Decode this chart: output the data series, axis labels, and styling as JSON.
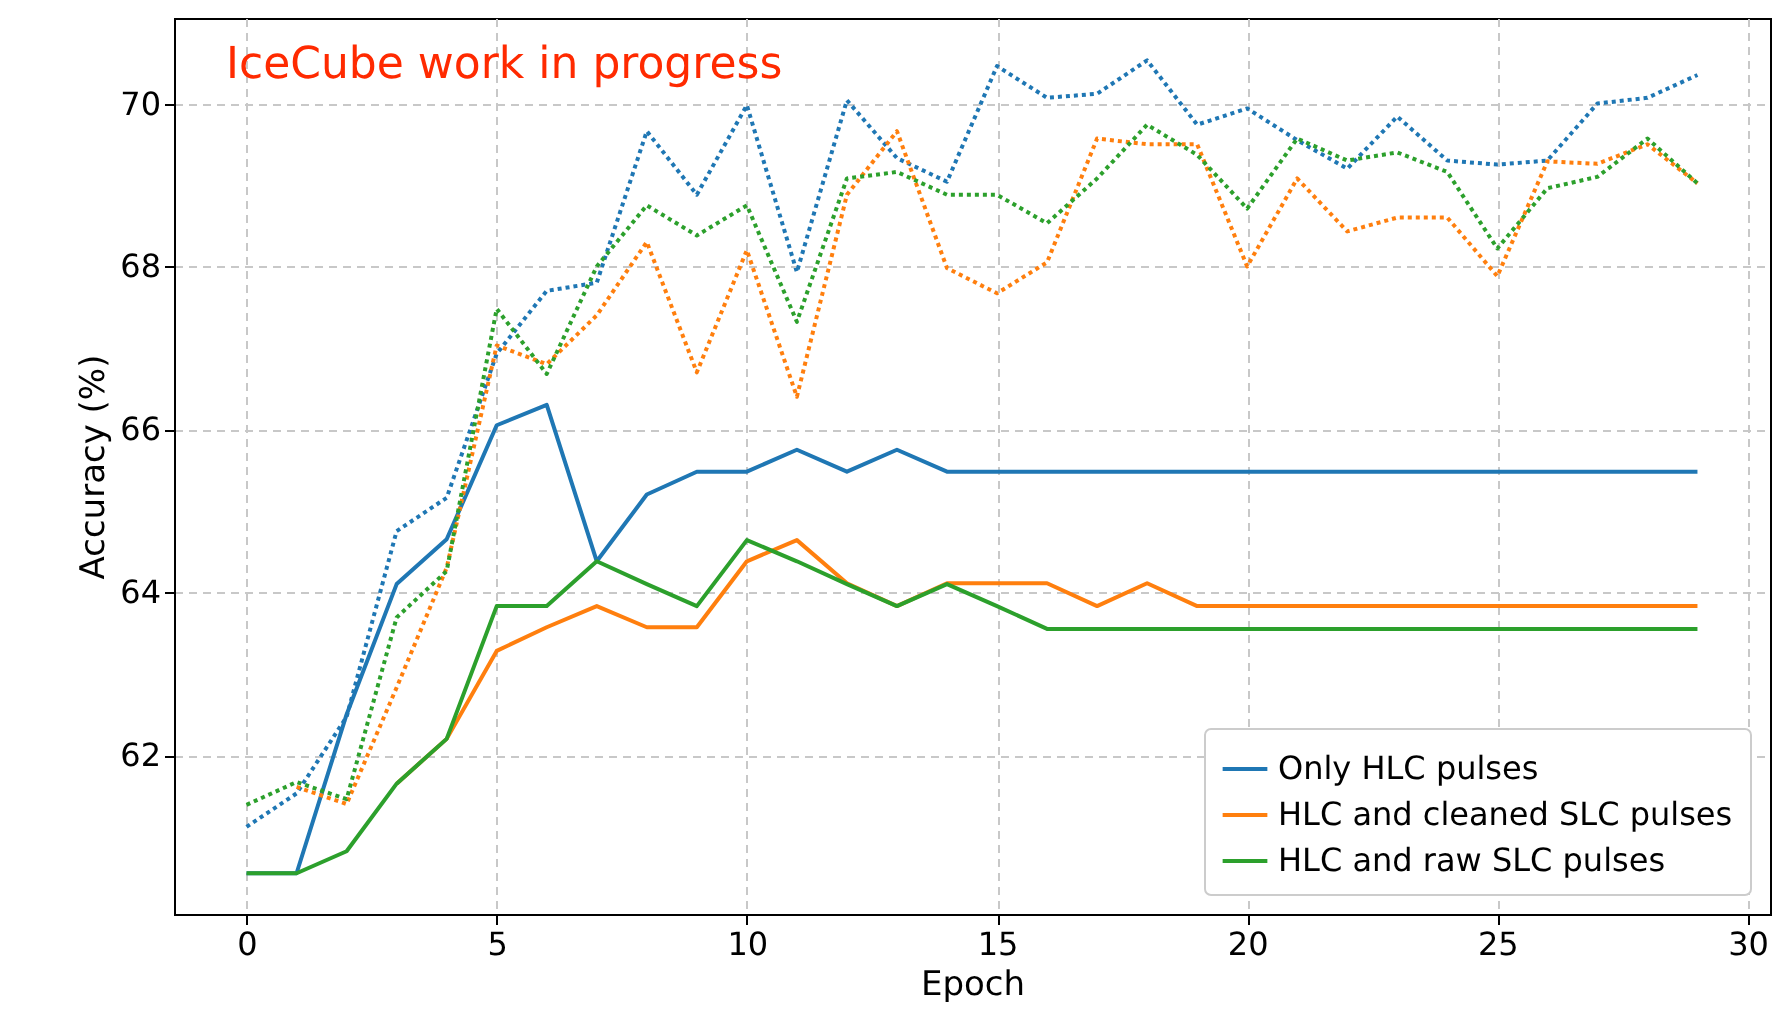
{
  "chart_data": {
    "type": "line",
    "xlabel": "Epoch",
    "ylabel": "Accuracy (%)",
    "xlim": [
      -1.45,
      30.45
    ],
    "ylim": [
      60.05,
      71.05
    ],
    "xticks": [
      0,
      5,
      10,
      15,
      20,
      25,
      30
    ],
    "yticks": [
      62,
      64,
      66,
      68,
      70
    ],
    "grid": true,
    "legend": "bottom right",
    "marker": "none",
    "x": [
      0,
      1,
      2,
      3,
      4,
      5,
      6,
      7,
      8,
      9,
      10,
      11,
      12,
      13,
      14,
      15,
      16,
      17,
      18,
      19,
      20,
      21,
      22,
      23,
      24,
      25,
      26,
      27,
      28,
      29
    ],
    "annotations": [
      "IceCube work in progress"
    ],
    "series": [
      {
        "name": "Only HLC pulses",
        "color": "#1f77b4",
        "line_style": "solid",
        "values": [
          60.55,
          60.55,
          62.5,
          64.1,
          64.65,
          66.05,
          66.3,
          64.38,
          65.2,
          65.48,
          65.48,
          65.75,
          65.48,
          65.75,
          65.48,
          65.48,
          65.48,
          65.48,
          65.48,
          65.48,
          65.48,
          65.48,
          65.48,
          65.48,
          65.48,
          65.48,
          65.48,
          65.48,
          65.48,
          65.48
        ]
      },
      {
        "name": "HLC and cleaned SLC pulses",
        "color": "#ff7f0e",
        "line_style": "solid",
        "values": [
          null,
          null,
          null,
          61.65,
          62.2,
          63.28,
          63.57,
          63.83,
          63.57,
          63.57,
          64.38,
          64.64,
          64.11,
          63.83,
          64.11,
          64.11,
          64.11,
          63.83,
          64.11,
          63.83,
          63.83,
          63.83,
          63.83,
          63.83,
          63.83,
          63.83,
          63.83,
          63.83,
          63.83,
          63.83
        ]
      },
      {
        "name": "HLC and raw SLC pulses",
        "color": "#2ca02c",
        "line_style": "solid",
        "values": [
          60.55,
          60.55,
          60.82,
          61.65,
          62.2,
          63.83,
          63.83,
          64.38,
          64.1,
          63.83,
          64.64,
          64.38,
          64.1,
          63.83,
          64.1,
          63.83,
          63.55,
          63.55,
          63.55,
          63.55,
          63.55,
          63.55,
          63.55,
          63.55,
          63.55,
          63.55,
          63.55,
          63.55,
          63.55,
          63.55
        ]
      },
      {
        "color": "#1f77b4",
        "line_style": "dotted",
        "values": [
          61.12,
          61.53,
          62.47,
          64.75,
          65.16,
          66.93,
          67.7,
          67.8,
          69.66,
          68.88,
          69.98,
          67.93,
          70.04,
          69.33,
          69.04,
          70.46,
          70.07,
          70.12,
          70.53,
          69.74,
          69.94,
          69.55,
          69.2,
          69.84,
          69.3,
          69.25,
          69.3,
          70.0,
          70.07,
          70.35
        ]
      },
      {
        "color": "#ff7f0e",
        "line_style": "dotted",
        "values": [
          null,
          61.61,
          61.4,
          62.83,
          64.3,
          67.03,
          66.8,
          67.4,
          68.3,
          66.7,
          68.2,
          66.4,
          68.88,
          69.66,
          67.98,
          67.67,
          68.05,
          69.57,
          69.5,
          69.5,
          68.0,
          69.08,
          68.43,
          68.6,
          68.6,
          67.88,
          69.29,
          69.26,
          69.5,
          69.02
        ]
      },
      {
        "color": "#2ca02c",
        "line_style": "dotted",
        "values": [
          61.39,
          61.67,
          61.46,
          63.69,
          64.26,
          67.48,
          66.68,
          68.0,
          68.75,
          68.38,
          68.75,
          67.32,
          69.08,
          69.16,
          68.88,
          68.88,
          68.53,
          69.08,
          69.74,
          69.37,
          68.71,
          69.57,
          69.3,
          69.4,
          69.16,
          68.22,
          68.96,
          69.1,
          69.57,
          69.02
        ]
      }
    ]
  }
}
